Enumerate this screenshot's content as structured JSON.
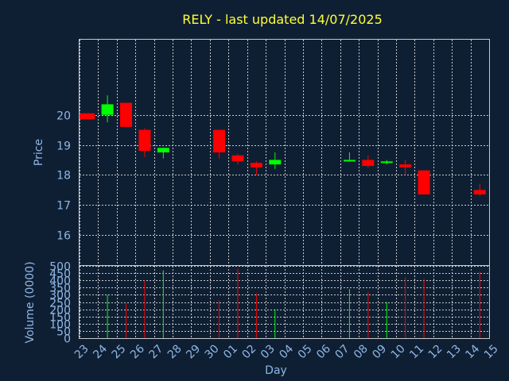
{
  "chart_data": {
    "type": "candlestick",
    "title": "RELY - last updated 14/07/2025",
    "xlabel": "Day",
    "price_panel": {
      "ylabel": "Price",
      "yticks": [
        16,
        17,
        18,
        19,
        20
      ],
      "ylim": [
        15,
        22.5
      ],
      "grid": true
    },
    "volume_panel": {
      "ylabel": "Volume (0000)",
      "yticks": [
        0,
        50,
        100,
        150,
        200,
        250,
        300,
        350,
        400,
        450,
        500
      ],
      "ylim": [
        0,
        500
      ],
      "grid": true
    },
    "x_ticks": [
      "23",
      "24",
      "25",
      "26",
      "27",
      "28",
      "29",
      "30",
      "01",
      "02",
      "03",
      "04",
      "05",
      "06",
      "07",
      "08",
      "09",
      "10",
      "11",
      "12",
      "13",
      "14",
      "15"
    ],
    "colors": {
      "up": "#00ff00",
      "down": "#ff0000",
      "background": "#0f1f33",
      "title": "#ffff33",
      "axis_text": "#8fb7e6"
    },
    "candles": [
      {
        "day": "23",
        "open": 20.05,
        "high": 20.05,
        "low": 19.85,
        "close": 19.85,
        "volume": 0
      },
      {
        "day": "24",
        "open": 20.0,
        "high": 20.65,
        "low": 19.75,
        "close": 20.35,
        "volume": 300
      },
      {
        "day": "25",
        "open": 20.4,
        "high": 20.4,
        "low": 19.6,
        "close": 19.6,
        "volume": 240
      },
      {
        "day": "26",
        "open": 19.5,
        "high": 19.55,
        "low": 18.6,
        "close": 18.8,
        "volume": 400
      },
      {
        "day": "27",
        "open": 18.75,
        "high": 18.9,
        "low": 18.55,
        "close": 18.9,
        "volume": 470
      },
      {
        "day": "30",
        "open": 19.5,
        "high": 19.5,
        "low": 18.55,
        "close": 18.75,
        "volume": 260
      },
      {
        "day": "01",
        "open": 18.65,
        "high": 18.7,
        "low": 18.35,
        "close": 18.45,
        "volume": 480
      },
      {
        "day": "02",
        "open": 18.4,
        "high": 18.45,
        "low": 18.0,
        "close": 18.25,
        "volume": 310
      },
      {
        "day": "03",
        "open": 18.35,
        "high": 18.75,
        "low": 18.2,
        "close": 18.5,
        "volume": 200
      },
      {
        "day": "07",
        "open": 18.5,
        "high": 18.75,
        "low": 18.45,
        "close": 18.5,
        "volume": 340
      },
      {
        "day": "08",
        "open": 18.5,
        "high": 18.65,
        "low": 18.25,
        "close": 18.3,
        "volume": 320
      },
      {
        "day": "09",
        "open": 18.45,
        "high": 18.5,
        "low": 18.35,
        "close": 18.45,
        "volume": 250
      },
      {
        "day": "10",
        "open": 18.35,
        "high": 18.5,
        "low": 18.0,
        "close": 18.25,
        "volume": 420
      },
      {
        "day": "11",
        "open": 18.15,
        "high": 18.15,
        "low": 17.35,
        "close": 17.35,
        "volume": 410
      },
      {
        "day": "14",
        "open": 17.5,
        "high": 17.7,
        "low": 17.3,
        "close": 17.35,
        "volume": 460
      }
    ]
  }
}
